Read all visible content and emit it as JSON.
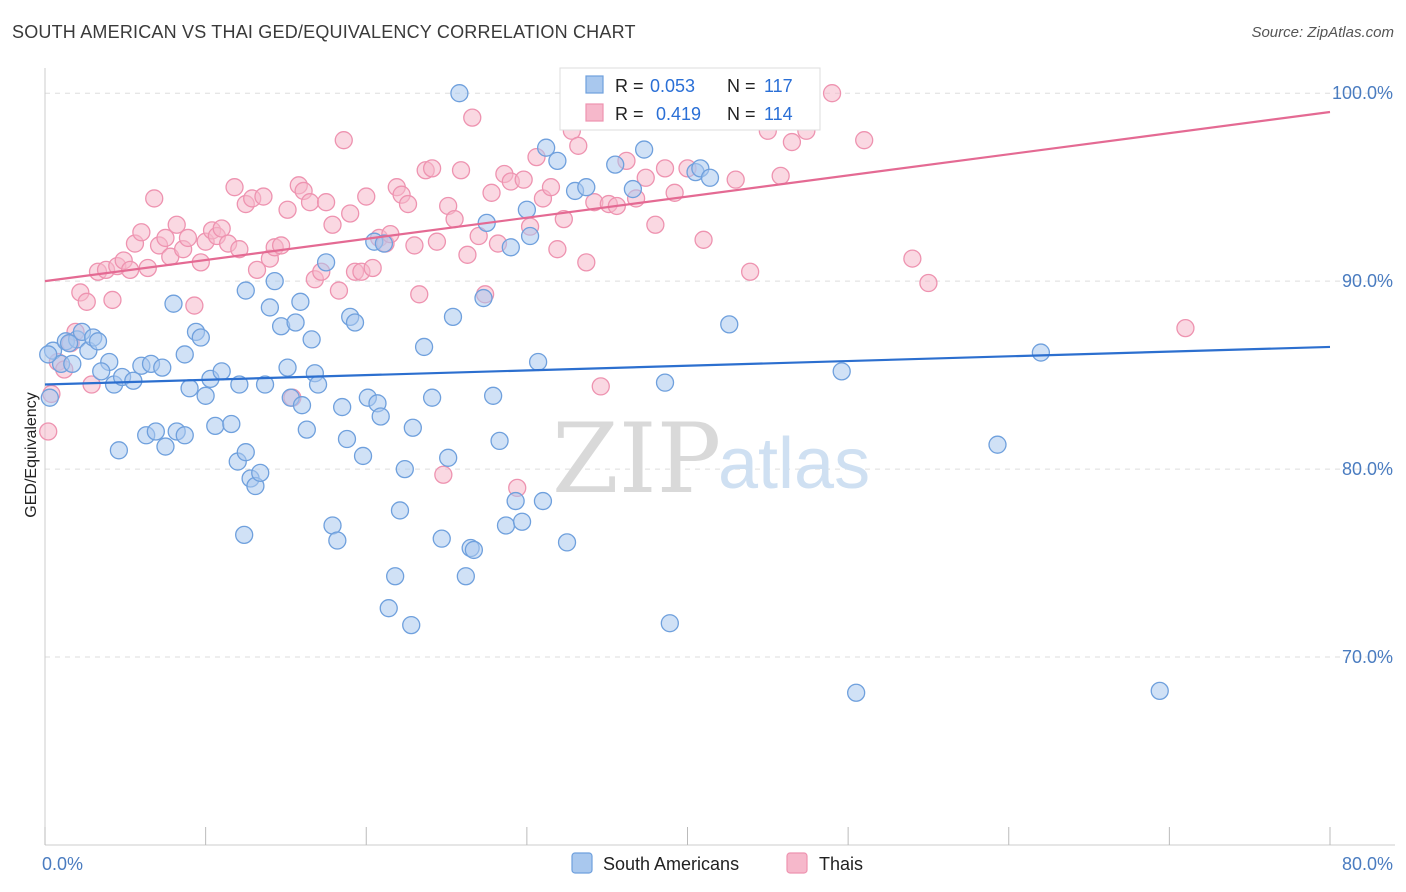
{
  "title": "SOUTH AMERICAN VS THAI GED/EQUIVALENCY CORRELATION CHART",
  "source": "Source: ZipAtlas.com",
  "watermark": {
    "zip": "ZIP",
    "atlas": "atlas"
  },
  "colors": {
    "blue_fill": "#a9c8ee",
    "blue_stroke": "#6fa0dd",
    "blue_line": "#2c6fcf",
    "pink_fill": "#f6b8cb",
    "pink_stroke": "#ee93b0",
    "pink_line": "#e46a93",
    "tick_label": "#4a7cc0",
    "grid": "#dddddd"
  },
  "legend_top": [
    {
      "series": "South Americans",
      "r_label": "R =",
      "r_value": "0.053",
      "n_label": "N =",
      "n_value": "117"
    },
    {
      "series": "Thais",
      "r_label": "R =",
      "r_value": "0.419",
      "n_label": "N =",
      "n_value": "114"
    }
  ],
  "chart_data": {
    "type": "scatter",
    "title": "SOUTH AMERICAN VS THAI GED/EQUIVALENCY CORRELATION CHART",
    "xlabel": "",
    "ylabel": "GED/Equivalency",
    "xlim": [
      0,
      80
    ],
    "ylim": [
      60,
      101.5
    ],
    "x_tick_labels": [
      "0.0%",
      "80.0%"
    ],
    "y_ticks": [
      70,
      80,
      90,
      100
    ],
    "y_tick_labels": [
      "70.0%",
      "80.0%",
      "90.0%",
      "100.0%"
    ],
    "grid": true,
    "legend_position": "bottom",
    "series": [
      {
        "name": "South Americans",
        "trend": [
          [
            0,
            84.5
          ],
          [
            80,
            86.5
          ]
        ],
        "points": [
          [
            0.3,
            83.8
          ],
          [
            0.5,
            86.3
          ],
          [
            1.0,
            85.6
          ],
          [
            1.3,
            86.8
          ],
          [
            1.7,
            85.6
          ],
          [
            2.0,
            86.9
          ],
          [
            2.3,
            87.3
          ],
          [
            2.7,
            86.3
          ],
          [
            3.0,
            87.0
          ],
          [
            3.3,
            86.8
          ],
          [
            4.0,
            85.7
          ],
          [
            4.3,
            84.5
          ],
          [
            4.8,
            84.9
          ],
          [
            5.5,
            84.7
          ],
          [
            6.0,
            85.5
          ],
          [
            6.6,
            85.6
          ],
          [
            7.3,
            85.4
          ],
          [
            3.5,
            85.2
          ],
          [
            4.6,
            81.0
          ],
          [
            6.3,
            81.8
          ],
          [
            6.9,
            82.0
          ],
          [
            7.5,
            81.2
          ],
          [
            8.2,
            82.0
          ],
          [
            8.7,
            81.8
          ],
          [
            8.0,
            88.8
          ],
          [
            8.7,
            86.1
          ],
          [
            9.4,
            87.3
          ],
          [
            9.7,
            87.0
          ],
          [
            10.0,
            83.9
          ],
          [
            10.3,
            84.8
          ],
          [
            10.6,
            82.3
          ],
          [
            11.0,
            85.2
          ],
          [
            11.6,
            82.4
          ],
          [
            12.0,
            80.4
          ],
          [
            12.1,
            84.5
          ],
          [
            12.5,
            80.9
          ],
          [
            12.8,
            79.5
          ],
          [
            13.1,
            79.1
          ],
          [
            13.4,
            79.8
          ],
          [
            13.7,
            84.5
          ],
          [
            12.4,
            76.5
          ],
          [
            12.5,
            89.5
          ],
          [
            14.0,
            88.6
          ],
          [
            14.3,
            90.0
          ],
          [
            14.7,
            87.6
          ],
          [
            15.1,
            85.4
          ],
          [
            15.3,
            83.8
          ],
          [
            15.6,
            87.8
          ],
          [
            16.0,
            83.4
          ],
          [
            16.3,
            82.1
          ],
          [
            16.6,
            86.9
          ],
          [
            16.8,
            85.1
          ],
          [
            17.0,
            84.5
          ],
          [
            17.5,
            91.0
          ],
          [
            17.9,
            77.0
          ],
          [
            18.2,
            76.2
          ],
          [
            18.5,
            83.3
          ],
          [
            18.8,
            81.6
          ],
          [
            19.0,
            88.1
          ],
          [
            19.3,
            87.8
          ],
          [
            19.8,
            80.7
          ],
          [
            20.1,
            83.8
          ],
          [
            20.5,
            92.1
          ],
          [
            20.7,
            83.5
          ],
          [
            20.9,
            82.8
          ],
          [
            21.1,
            92.0
          ],
          [
            21.4,
            72.6
          ],
          [
            21.8,
            74.3
          ],
          [
            22.1,
            77.8
          ],
          [
            22.4,
            80.0
          ],
          [
            22.9,
            82.2
          ],
          [
            22.8,
            71.7
          ],
          [
            23.6,
            86.5
          ],
          [
            24.1,
            83.8
          ],
          [
            24.7,
            76.3
          ],
          [
            25.1,
            80.6
          ],
          [
            25.4,
            88.1
          ],
          [
            25.8,
            100.0
          ],
          [
            26.2,
            74.3
          ],
          [
            26.5,
            75.8
          ],
          [
            26.7,
            75.7
          ],
          [
            27.3,
            89.1
          ],
          [
            27.5,
            93.1
          ],
          [
            27.9,
            83.9
          ],
          [
            28.3,
            81.5
          ],
          [
            28.7,
            77.0
          ],
          [
            29.0,
            91.8
          ],
          [
            29.3,
            78.3
          ],
          [
            29.7,
            77.2
          ],
          [
            30.0,
            93.8
          ],
          [
            30.2,
            92.4
          ],
          [
            30.7,
            85.7
          ],
          [
            31.0,
            78.3
          ],
          [
            31.2,
            97.1
          ],
          [
            31.9,
            96.4
          ],
          [
            32.5,
            76.1
          ],
          [
            33.0,
            94.8
          ],
          [
            33.7,
            95.0
          ],
          [
            35.5,
            96.2
          ],
          [
            36.6,
            94.9
          ],
          [
            37.3,
            97.0
          ],
          [
            37.8,
            100.0
          ],
          [
            38.6,
            84.6
          ],
          [
            38.9,
            71.8
          ],
          [
            40.5,
            95.8
          ],
          [
            40.8,
            96.0
          ],
          [
            41.4,
            95.5
          ],
          [
            42.6,
            87.7
          ],
          [
            49.6,
            85.2
          ],
          [
            50.5,
            68.1
          ],
          [
            59.3,
            81.3
          ],
          [
            62.0,
            86.2
          ],
          [
            69.4,
            68.2
          ],
          [
            0.2,
            86.1
          ],
          [
            1.5,
            86.7
          ],
          [
            9.0,
            84.3
          ],
          [
            15.9,
            88.9
          ]
        ]
      },
      {
        "name": "Thais",
        "trend": [
          [
            0,
            90.0
          ],
          [
            80,
            99.0
          ]
        ],
        "points": [
          [
            0.2,
            82.0
          ],
          [
            0.4,
            84.0
          ],
          [
            0.8,
            85.7
          ],
          [
            1.2,
            85.3
          ],
          [
            1.6,
            86.7
          ],
          [
            1.9,
            87.3
          ],
          [
            2.2,
            89.4
          ],
          [
            2.6,
            88.9
          ],
          [
            2.9,
            84.5
          ],
          [
            3.3,
            90.5
          ],
          [
            3.8,
            90.6
          ],
          [
            4.2,
            89.0
          ],
          [
            4.5,
            90.8
          ],
          [
            4.9,
            91.1
          ],
          [
            5.3,
            90.6
          ],
          [
            5.6,
            92.0
          ],
          [
            6.0,
            92.6
          ],
          [
            6.4,
            90.7
          ],
          [
            6.8,
            94.4
          ],
          [
            7.1,
            91.9
          ],
          [
            7.5,
            92.3
          ],
          [
            7.8,
            91.3
          ],
          [
            8.2,
            93.0
          ],
          [
            8.6,
            91.7
          ],
          [
            8.9,
            92.3
          ],
          [
            9.3,
            88.7
          ],
          [
            9.7,
            91.0
          ],
          [
            10.0,
            92.1
          ],
          [
            10.4,
            92.7
          ],
          [
            10.7,
            92.4
          ],
          [
            11.0,
            92.8
          ],
          [
            11.4,
            92.0
          ],
          [
            11.8,
            95.0
          ],
          [
            12.1,
            91.7
          ],
          [
            12.5,
            94.1
          ],
          [
            12.9,
            94.4
          ],
          [
            13.2,
            90.6
          ],
          [
            13.6,
            94.5
          ],
          [
            14.0,
            91.2
          ],
          [
            14.3,
            91.8
          ],
          [
            14.7,
            91.9
          ],
          [
            15.1,
            93.8
          ],
          [
            15.4,
            83.8
          ],
          [
            15.8,
            95.1
          ],
          [
            16.1,
            94.8
          ],
          [
            16.5,
            94.2
          ],
          [
            16.8,
            90.1
          ],
          [
            17.2,
            90.5
          ],
          [
            17.5,
            94.2
          ],
          [
            17.9,
            93.0
          ],
          [
            18.3,
            89.5
          ],
          [
            18.6,
            97.5
          ],
          [
            19.0,
            93.6
          ],
          [
            19.3,
            90.5
          ],
          [
            19.7,
            90.5
          ],
          [
            20.0,
            94.5
          ],
          [
            20.4,
            90.7
          ],
          [
            20.8,
            92.3
          ],
          [
            21.2,
            92.0
          ],
          [
            21.5,
            92.5
          ],
          [
            21.9,
            95.0
          ],
          [
            22.2,
            94.6
          ],
          [
            22.6,
            94.1
          ],
          [
            23.0,
            91.9
          ],
          [
            23.3,
            89.3
          ],
          [
            23.7,
            95.9
          ],
          [
            24.1,
            96.0
          ],
          [
            24.4,
            92.1
          ],
          [
            24.8,
            79.7
          ],
          [
            25.1,
            94.0
          ],
          [
            25.5,
            93.3
          ],
          [
            25.9,
            95.9
          ],
          [
            26.3,
            91.4
          ],
          [
            26.6,
            98.7
          ],
          [
            27.0,
            92.4
          ],
          [
            27.4,
            89.3
          ],
          [
            27.8,
            94.7
          ],
          [
            28.2,
            92.0
          ],
          [
            28.6,
            95.7
          ],
          [
            29.0,
            95.3
          ],
          [
            29.4,
            79.0
          ],
          [
            29.8,
            95.4
          ],
          [
            30.2,
            92.9
          ],
          [
            30.6,
            96.6
          ],
          [
            31.0,
            94.4
          ],
          [
            31.5,
            95.0
          ],
          [
            31.9,
            91.7
          ],
          [
            32.3,
            93.3
          ],
          [
            32.8,
            98.0
          ],
          [
            33.2,
            97.2
          ],
          [
            33.7,
            91.0
          ],
          [
            34.2,
            94.2
          ],
          [
            34.6,
            84.4
          ],
          [
            35.1,
            94.1
          ],
          [
            35.6,
            94.0
          ],
          [
            36.2,
            96.4
          ],
          [
            36.8,
            94.4
          ],
          [
            37.4,
            95.5
          ],
          [
            38.0,
            93.0
          ],
          [
            38.6,
            96.0
          ],
          [
            39.2,
            94.7
          ],
          [
            40.0,
            96.0
          ],
          [
            41.0,
            92.2
          ],
          [
            43.0,
            95.4
          ],
          [
            43.9,
            90.5
          ],
          [
            45.0,
            98.0
          ],
          [
            45.8,
            95.6
          ],
          [
            46.5,
            97.4
          ],
          [
            47.4,
            98.0
          ],
          [
            49.0,
            100.0
          ],
          [
            51.0,
            97.5
          ],
          [
            54.0,
            91.2
          ],
          [
            55.0,
            89.9
          ],
          [
            71.0,
            87.5
          ]
        ]
      }
    ]
  }
}
